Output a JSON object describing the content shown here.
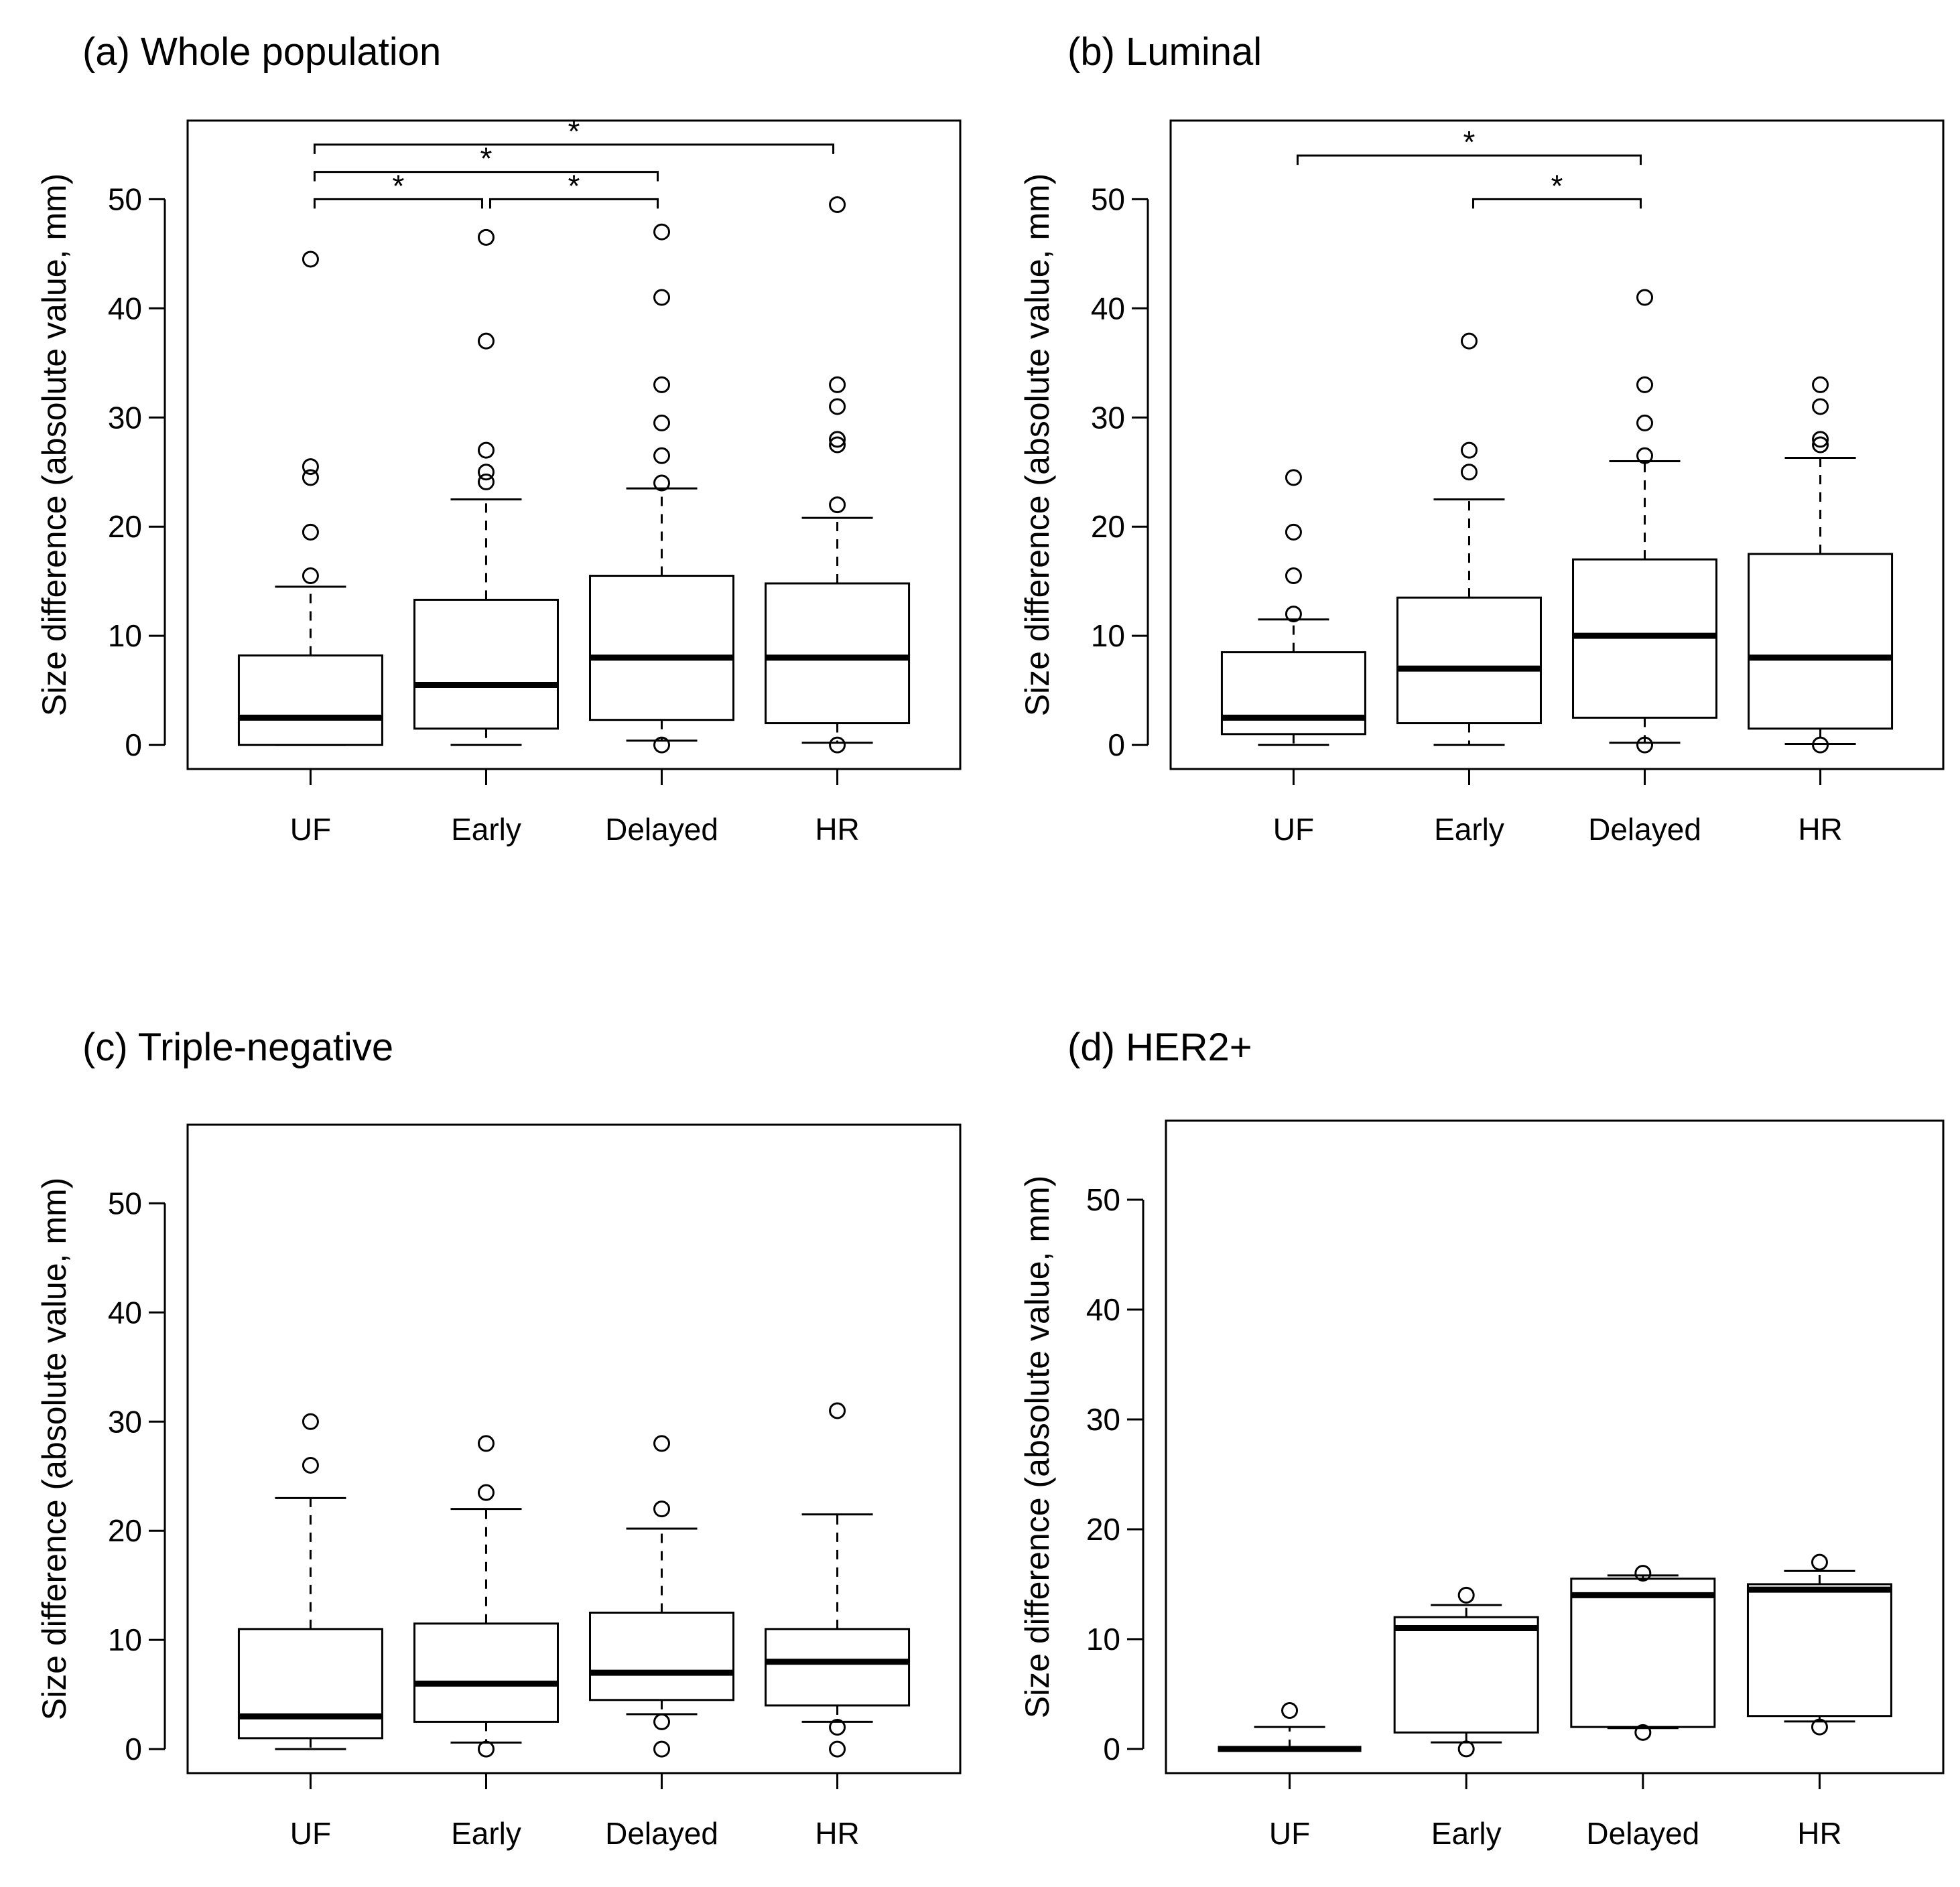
{
  "chart_data": [
    {
      "type": "box",
      "title": "(a) Whole population",
      "ylabel": "Size difference (absolute value, mm)",
      "xlabel": "",
      "ylim": [
        -2.2,
        57.2
      ],
      "yticks": [
        0,
        10,
        20,
        30,
        40,
        50
      ],
      "categories": [
        "UF",
        "Early",
        "Delayed",
        "HR"
      ],
      "boxes": [
        {
          "category": "UF",
          "whisker_low": 0,
          "q1": 0,
          "median": 2.5,
          "q3": 8.2,
          "whisker_high": 14.5,
          "outliers": [
            15.5,
            19.5,
            24.5,
            25.5,
            44.5
          ]
        },
        {
          "category": "Early",
          "whisker_low": 0,
          "q1": 1.5,
          "median": 5.5,
          "q3": 13.3,
          "whisker_high": 22.5,
          "outliers": [
            24.1,
            25,
            27,
            37,
            46.5
          ]
        },
        {
          "category": "Delayed",
          "whisker_low": 0.4,
          "q1": 2.3,
          "median": 8,
          "q3": 15.5,
          "whisker_high": 23.5,
          "outliers": [
            0,
            24,
            26.5,
            29.5,
            33,
            41,
            47
          ]
        },
        {
          "category": "HR",
          "whisker_low": 0.2,
          "q1": 2,
          "median": 8,
          "q3": 14.8,
          "whisker_high": 20.8,
          "outliers": [
            0,
            22,
            27.5,
            28,
            31,
            33,
            49.5
          ]
        }
      ],
      "significance": [
        {
          "from": "UF",
          "to": "Early",
          "label": "*",
          "y": 50
        },
        {
          "from": "Early",
          "to": "Delayed",
          "label": "*",
          "y": 50
        },
        {
          "from": "UF",
          "to": "Delayed",
          "label": "*",
          "y": 52.5
        },
        {
          "from": "UF",
          "to": "HR",
          "label": "*",
          "y": 55
        }
      ]
    },
    {
      "type": "box",
      "title": "(b) Luminal",
      "ylabel": "Size difference (absolute value, mm)",
      "xlabel": "",
      "ylim": [
        -2.2,
        57.2
      ],
      "yticks": [
        0,
        10,
        20,
        30,
        40,
        50
      ],
      "categories": [
        "UF",
        "Early",
        "Delayed",
        "HR"
      ],
      "boxes": [
        {
          "category": "UF",
          "whisker_low": 0,
          "q1": 1,
          "median": 2.5,
          "q3": 8.5,
          "whisker_high": 11.5,
          "outliers": [
            12,
            15.5,
            19.5,
            24.5
          ]
        },
        {
          "category": "Early",
          "whisker_low": 0,
          "q1": 2,
          "median": 7,
          "q3": 13.5,
          "whisker_high": 22.5,
          "outliers": [
            25,
            27,
            37
          ]
        },
        {
          "category": "Delayed",
          "whisker_low": 0.2,
          "q1": 2.5,
          "median": 10,
          "q3": 17,
          "whisker_high": 26,
          "outliers": [
            0,
            26.5,
            29.5,
            33,
            41
          ]
        },
        {
          "category": "HR",
          "whisker_low": 0.1,
          "q1": 1.5,
          "median": 8,
          "q3": 17.5,
          "whisker_high": 26.3,
          "outliers": [
            0,
            27.5,
            28,
            31,
            33
          ]
        }
      ],
      "significance": [
        {
          "from": "Early",
          "to": "Delayed",
          "label": "*",
          "y": 50
        },
        {
          "from": "UF",
          "to": "Delayed",
          "label": "*",
          "y": 54
        }
      ]
    },
    {
      "type": "box",
      "title": "(c) Triple-negative",
      "ylabel": "Size difference (absolute value, mm)",
      "xlabel": "",
      "ylim": [
        -2.2,
        57.2
      ],
      "yticks": [
        0,
        10,
        20,
        30,
        40,
        50
      ],
      "categories": [
        "UF",
        "Early",
        "Delayed",
        "HR"
      ],
      "boxes": [
        {
          "category": "UF",
          "whisker_low": 0,
          "q1": 1,
          "median": 3,
          "q3": 11,
          "whisker_high": 23,
          "outliers": [
            26,
            30
          ]
        },
        {
          "category": "Early",
          "whisker_low": 0.6,
          "q1": 2.5,
          "median": 6,
          "q3": 11.5,
          "whisker_high": 22,
          "outliers": [
            0,
            23.5,
            28
          ]
        },
        {
          "category": "Delayed",
          "whisker_low": 3.2,
          "q1": 4.5,
          "median": 7,
          "q3": 12.5,
          "whisker_high": 20.2,
          "outliers": [
            0,
            2.5,
            22,
            28
          ]
        },
        {
          "category": "HR",
          "whisker_low": 2.5,
          "q1": 4,
          "median": 8,
          "q3": 11,
          "whisker_high": 21.5,
          "outliers": [
            0,
            2,
            31
          ]
        }
      ],
      "significance": []
    },
    {
      "type": "box",
      "title": "(d) HER2+",
      "ylabel": "Size difference (absolute value, mm)",
      "xlabel": "",
      "ylim": [
        -2.2,
        57.2
      ],
      "yticks": [
        0,
        10,
        20,
        30,
        40,
        50
      ],
      "categories": [
        "UF",
        "Early",
        "Delayed",
        "HR"
      ],
      "boxes": [
        {
          "category": "UF",
          "whisker_low": 0,
          "q1": 0,
          "median": 0,
          "q3": 0,
          "whisker_high": 2,
          "outliers": [
            3.5
          ]
        },
        {
          "category": "Early",
          "whisker_low": 0.6,
          "q1": 1.5,
          "median": 11,
          "q3": 12,
          "whisker_high": 13.1,
          "outliers": [
            0,
            14
          ]
        },
        {
          "category": "Delayed",
          "whisker_low": 1.9,
          "q1": 2,
          "median": 14,
          "q3": 15.5,
          "whisker_high": 15.8,
          "outliers": [
            1.5,
            16
          ]
        },
        {
          "category": "HR",
          "whisker_low": 2.5,
          "q1": 3,
          "median": 14.5,
          "q3": 15,
          "whisker_high": 16.2,
          "outliers": [
            2,
            17
          ]
        }
      ],
      "significance": []
    }
  ]
}
